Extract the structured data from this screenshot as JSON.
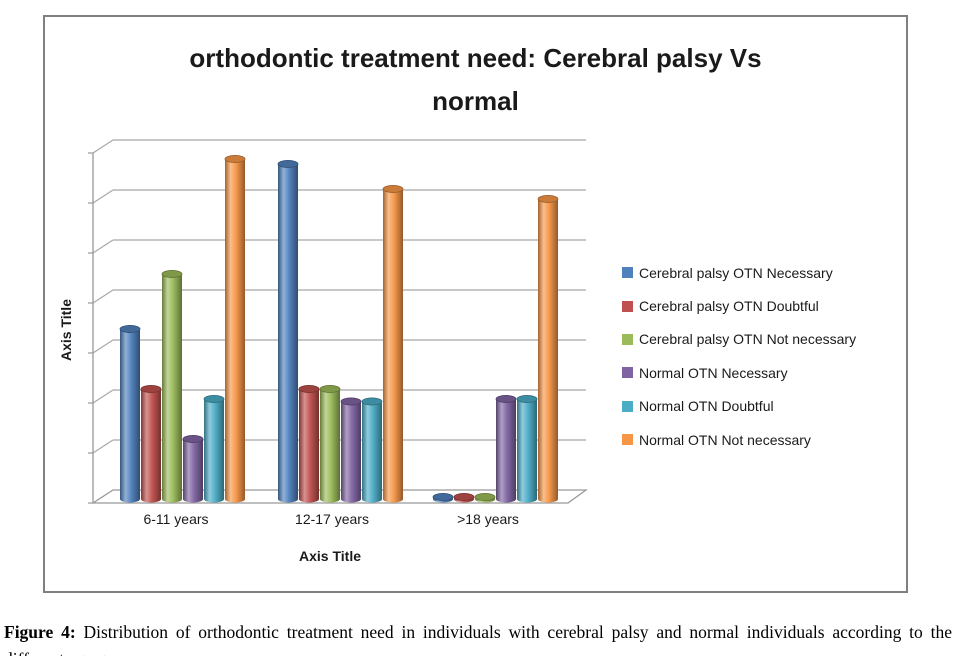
{
  "figure": {
    "caption_label": "Figure 4:",
    "caption_text": " Distribution of orthodontic treatment need in individuals with cerebral palsy and normal individuals according to the different age groups."
  },
  "chart_data": {
    "type": "bar",
    "style": "3d-cylinder",
    "title": "orthodontic treatment need: Cerebral palsy Vs normal",
    "xlabel": "Axis Title",
    "ylabel": "Axis Title",
    "categories": [
      "6-11 years",
      "12-17 years",
      ">18 years"
    ],
    "series": [
      {
        "name": "Cerebral palsy OTN Necessary",
        "color": "#4F81BD",
        "values": [
          34,
          67,
          0.4
        ]
      },
      {
        "name": "Cerebral palsy OTN Doubtful",
        "color": "#C0504D",
        "values": [
          22,
          22,
          0.4
        ]
      },
      {
        "name": "Cerebral palsy OTN Not necessary",
        "color": "#9BBB59",
        "values": [
          45,
          22,
          0.4
        ]
      },
      {
        "name": "Normal OTN Necessary",
        "color": "#8064A2",
        "values": [
          12,
          19.5,
          20
        ]
      },
      {
        "name": "Normal OTN Doubtful",
        "color": "#4BACC6",
        "values": [
          20,
          19.5,
          20
        ]
      },
      {
        "name": "Normal OTN Not necessary",
        "color": "#F79646",
        "values": [
          68,
          62,
          60
        ]
      }
    ],
    "ylim": [
      0,
      70
    ],
    "gridline_step": 10,
    "y_tick_labels_visible": false,
    "grid": true,
    "legend_position": "right"
  },
  "colors": {
    "frame_border": "#808080",
    "gridline": "#A8A8A8",
    "axis": "#999999",
    "text": "#1A1A1A"
  }
}
